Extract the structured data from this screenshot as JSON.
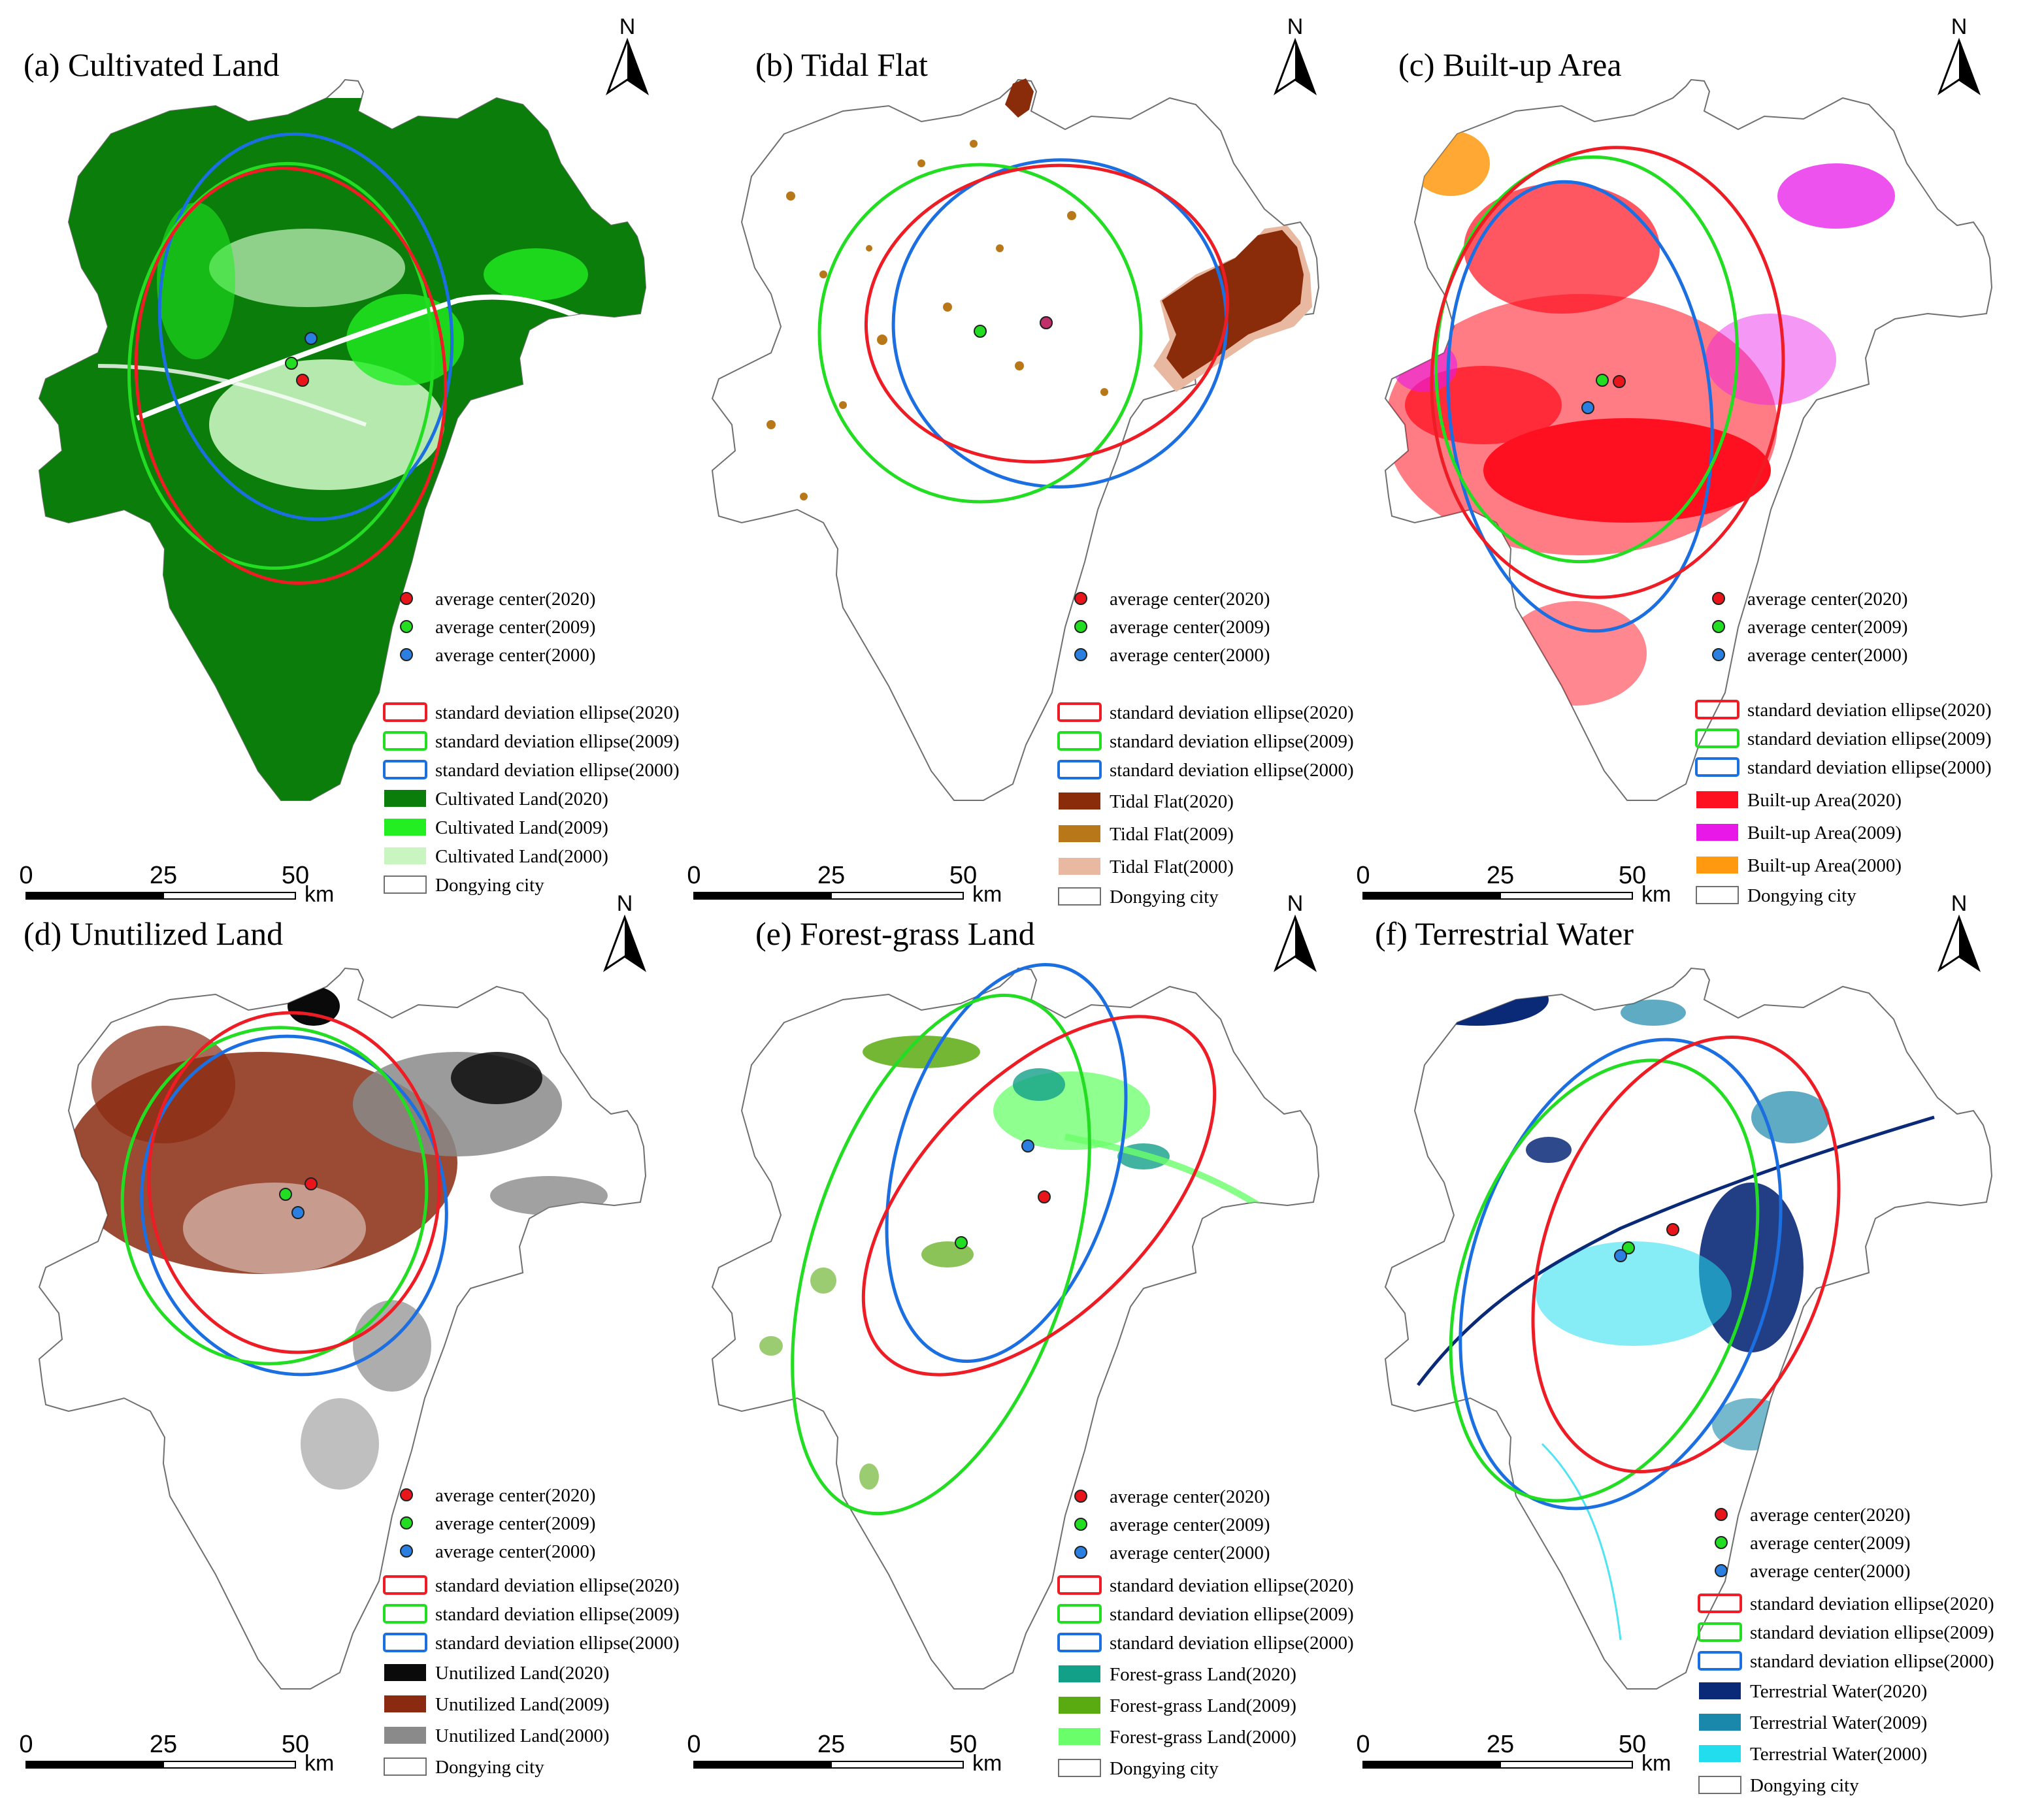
{
  "figure": {
    "city_name": "Dongying city",
    "north_label": "N",
    "scale": {
      "ticks": [
        "0",
        "25",
        "50"
      ],
      "unit": "km"
    },
    "colors": {
      "center_2020": "#e8151b",
      "center_2009": "#22dd22",
      "center_2000": "#2a7fe0",
      "ellipse_2020": "#ee1c24",
      "ellipse_2009": "#22dd22",
      "ellipse_2000": "#1c6fe0",
      "boundary": "#6f6f6f"
    },
    "common_legend": {
      "center_2020": "average center(2020)",
      "center_2009": "average center(2009)",
      "center_2000": "average center(2000)",
      "ellipse_2020": "standard deviation ellipse(2020)",
      "ellipse_2009": "standard deviation ellipse(2009)",
      "ellipse_2000": "standard deviation ellipse(2000)"
    }
  },
  "panels": [
    {
      "id": "a",
      "title": "(a) Cultivated Land",
      "land_classes": [
        {
          "label": "Cultivated Land(2020)",
          "color": "#0a7d0a"
        },
        {
          "label": "Cultivated Land(2009)",
          "color": "#22ee22"
        },
        {
          "label": "Cultivated Land(2000)",
          "color": "#c8f5c0"
        }
      ]
    },
    {
      "id": "b",
      "title": "(b) Tidal Flat",
      "land_classes": [
        {
          "label": "Tidal Flat(2020)",
          "color": "#8a2b0a"
        },
        {
          "label": "Tidal Flat(2009)",
          "color": "#b8781a"
        },
        {
          "label": "Tidal Flat(2000)",
          "color": "#e8b8a0"
        }
      ]
    },
    {
      "id": "c",
      "title": "(c) Built-up Area",
      "land_classes": [
        {
          "label": "Built-up Area(2020)",
          "color": "#ff1020"
        },
        {
          "label": "Built-up Area(2009)",
          "color": "#e818e8"
        },
        {
          "label": "Built-up Area(2000)",
          "color": "#ff9a10"
        }
      ]
    },
    {
      "id": "d",
      "title": "(d) Unutilized Land",
      "land_classes": [
        {
          "label": "Unutilized Land(2020)",
          "color": "#0a0a0a"
        },
        {
          "label": "Unutilized Land(2009)",
          "color": "#8a2a10"
        },
        {
          "label": "Unutilized Land(2000)",
          "color": "#8a8a8a"
        }
      ]
    },
    {
      "id": "e",
      "title": "(e) Forest-grass Land",
      "land_classes": [
        {
          "label": "Forest-grass Land(2020)",
          "color": "#12a088"
        },
        {
          "label": "Forest-grass Land(2009)",
          "color": "#5aaa12"
        },
        {
          "label": "Forest-grass Land(2000)",
          "color": "#6aff6a"
        }
      ]
    },
    {
      "id": "f",
      "title": "(f) Terrestrial Water",
      "land_classes": [
        {
          "label": "Terrestrial Water(2020)",
          "color": "#0a2a78"
        },
        {
          "label": "Terrestrial Water(2009)",
          "color": "#1a88aa"
        },
        {
          "label": "Terrestrial Water(2000)",
          "color": "#22ddee"
        }
      ]
    }
  ]
}
